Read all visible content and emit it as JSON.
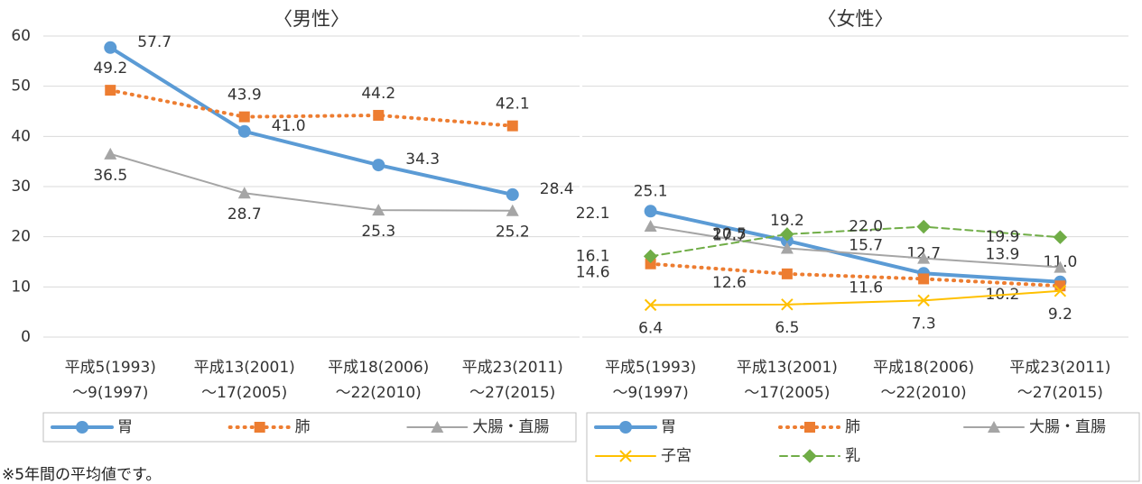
{
  "chart_data": [
    {
      "type": "line",
      "title": "〈男性〉",
      "categories": [
        [
          "平成5(1993)",
          "～9(1997)"
        ],
        [
          "平成13(2001)",
          "～17(2005)"
        ],
        [
          "平成18(2006)",
          "～22(2010)"
        ],
        [
          "平成23(2011)",
          "～27(2015)"
        ]
      ],
      "ylim": [
        0,
        60
      ],
      "yticks": [
        0,
        10,
        20,
        30,
        40,
        50,
        60
      ],
      "show_ytick_labels": true,
      "grid": true,
      "legend": "bottom",
      "series": [
        {
          "name": "胃",
          "color": "#5b9bd5",
          "marker": "circle",
          "dash": "solid",
          "width": 4,
          "values": [
            57.7,
            41.0,
            34.3,
            28.4
          ],
          "value_labels": [
            "57.7",
            "41.0",
            "34.3",
            "28.4"
          ]
        },
        {
          "name": "肺",
          "color": "#ed7d31",
          "marker": "square",
          "dash": "dot",
          "width": 4,
          "values": [
            49.2,
            43.9,
            44.2,
            42.1
          ],
          "value_labels": [
            "49.2",
            "43.9",
            "44.2",
            "42.1"
          ]
        },
        {
          "name": "大腸・直腸",
          "color": "#a5a5a5",
          "marker": "triangle",
          "dash": "solid",
          "width": 2,
          "values": [
            36.5,
            28.7,
            25.3,
            25.2
          ],
          "value_labels": [
            "36.5",
            "28.7",
            "25.3",
            "25.2"
          ]
        }
      ]
    },
    {
      "type": "line",
      "title": "〈女性〉",
      "categories": [
        [
          "平成5(1993)",
          "～9(1997)"
        ],
        [
          "平成13(2001)",
          "～17(2005)"
        ],
        [
          "平成18(2006)",
          "～22(2010)"
        ],
        [
          "平成23(2011)",
          "～27(2015)"
        ]
      ],
      "ylim": [
        0,
        60
      ],
      "yticks": [
        0,
        10,
        20,
        30,
        40,
        50,
        60
      ],
      "show_ytick_labels": false,
      "grid": true,
      "legend": "bottom",
      "series": [
        {
          "name": "胃",
          "color": "#5b9bd5",
          "marker": "circle",
          "dash": "solid",
          "width": 4,
          "values": [
            25.1,
            19.2,
            12.7,
            11.0
          ],
          "value_labels": [
            "25.1",
            "19.2",
            "12.7",
            "11.0"
          ]
        },
        {
          "name": "肺",
          "color": "#ed7d31",
          "marker": "square",
          "dash": "dot",
          "width": 4,
          "values": [
            14.6,
            12.6,
            11.6,
            10.2
          ],
          "value_labels": [
            "14.6",
            "12.6",
            "11.6",
            "10.2"
          ]
        },
        {
          "name": "大腸・直腸",
          "color": "#a5a5a5",
          "marker": "triangle",
          "dash": "solid",
          "width": 2,
          "values": [
            22.1,
            17.7,
            15.7,
            13.9
          ],
          "value_labels": [
            "22.1",
            "17.7",
            "15.7",
            "13.9"
          ]
        },
        {
          "name": "子宮",
          "color": "#ffc000",
          "marker": "x",
          "dash": "solid",
          "width": 2,
          "values": [
            6.4,
            6.5,
            7.3,
            9.2
          ],
          "value_labels": [
            "6.4",
            "6.5",
            "7.3",
            "9.2"
          ]
        },
        {
          "name": "乳",
          "color": "#70ad47",
          "marker": "diamond",
          "dash": "dash",
          "width": 2,
          "values": [
            16.1,
            20.5,
            22.0,
            19.9
          ],
          "value_labels": [
            "16.1",
            "20.5",
            "22.0",
            "19.9"
          ]
        }
      ]
    }
  ],
  "footnote": "※5年間の平均値です。"
}
